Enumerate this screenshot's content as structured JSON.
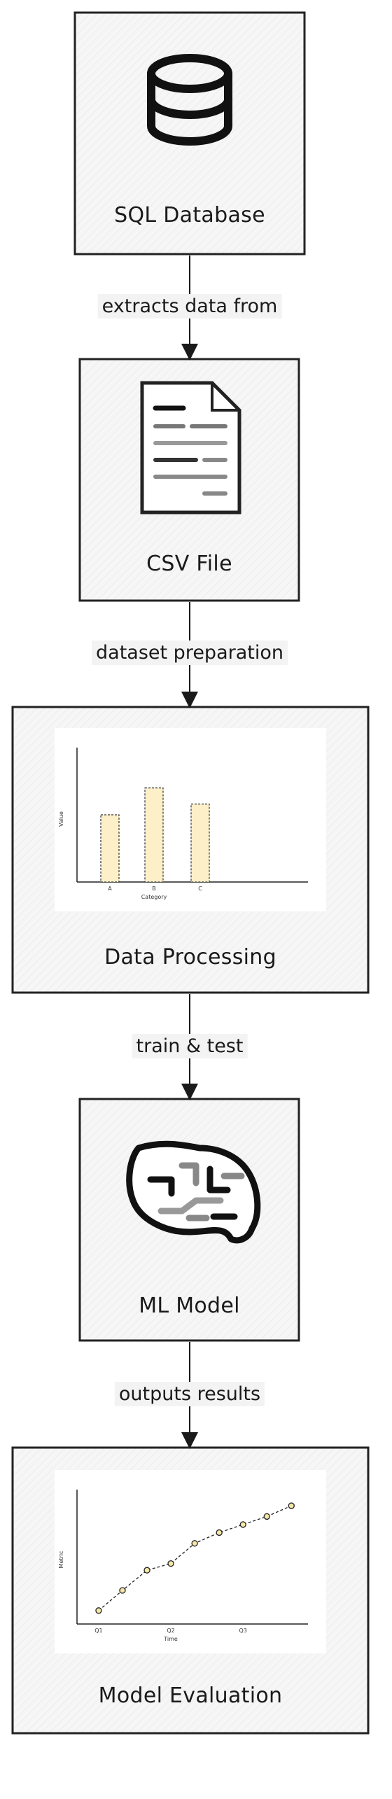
{
  "nodes": [
    {
      "id": "sql",
      "label": "SQL Database",
      "icon": "database-icon"
    },
    {
      "id": "csv",
      "label": "CSV File",
      "icon": "document-icon"
    },
    {
      "id": "processing",
      "label": "Data Processing",
      "icon": "bar-chart"
    },
    {
      "id": "model",
      "label": "ML Model",
      "icon": "brain-icon"
    },
    {
      "id": "eval",
      "label": "Model Evaluation",
      "icon": "line-chart"
    }
  ],
  "edges": [
    {
      "from": "sql",
      "to": "csv",
      "label": "extracts data from"
    },
    {
      "from": "csv",
      "to": "processing",
      "label": "dataset preparation"
    },
    {
      "from": "processing",
      "to": "model",
      "label": "train & test"
    },
    {
      "from": "model",
      "to": "eval",
      "label": "outputs results"
    }
  ],
  "chart_data": [
    {
      "type": "bar",
      "categories": [
        "A",
        "B",
        "C"
      ],
      "values": [
        5,
        7,
        5.8
      ],
      "xlabel": "Category",
      "ylabel": "Value",
      "ylim": [
        0,
        10
      ],
      "bar_color": "#fdf0c8"
    },
    {
      "type": "line",
      "x": [
        1,
        1.33,
        1.67,
        2,
        2.33,
        2.67,
        3,
        3.33,
        3.67
      ],
      "values": [
        1.0,
        2.5,
        4.0,
        4.5,
        6.0,
        6.8,
        7.4,
        8.0,
        8.8
      ],
      "xticks": [
        "Q1",
        "Q2",
        "Q3"
      ],
      "xlabel": "Time",
      "ylabel": "Metric",
      "ylim": [
        0,
        10
      ],
      "marker_color": "#f4e7a8"
    }
  ],
  "colors": {
    "stroke": "#1a1a1a",
    "node_fill": "#f6f6f6",
    "panel_fill": "#ffffff"
  }
}
